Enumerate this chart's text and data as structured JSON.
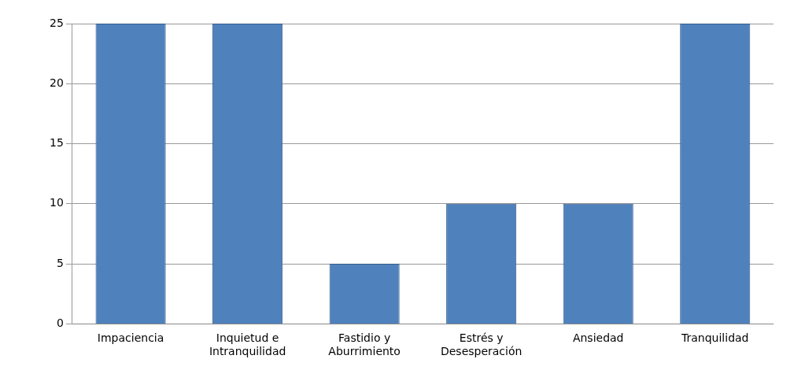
{
  "chart_data": {
    "type": "bar",
    "categories": [
      "Impaciencia",
      "Inquietud e Intranquilidad",
      "Fastidio y Aburrimiento",
      "Estrés y Desesperación",
      "Ansiedad",
      "Tranquilidad"
    ],
    "values": [
      25,
      25,
      5,
      10,
      10,
      25
    ],
    "color": "#4f81bd",
    "ylim": [
      0,
      25
    ],
    "yticks": [
      0,
      5,
      10,
      15,
      20,
      25
    ],
    "grid": "y",
    "legend": false
  }
}
